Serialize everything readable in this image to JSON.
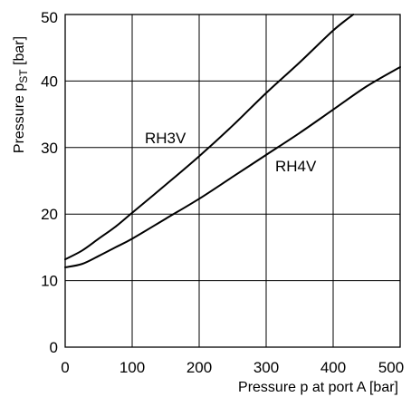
{
  "chart_data": {
    "type": "line",
    "xlabel": "Pressure p at port A [bar]",
    "ylabel": {
      "prefix": "Pressure p",
      "subscript": "ST",
      "suffix": " [bar]"
    },
    "xlim": [
      0,
      500
    ],
    "ylim": [
      0,
      50
    ],
    "x_ticks": [
      0,
      100,
      200,
      300,
      400,
      500
    ],
    "y_ticks": [
      0,
      10,
      20,
      30,
      40,
      50
    ],
    "grid": true,
    "series": [
      {
        "name": "RH3V",
        "x": [
          0,
          25,
          50,
          75,
          100,
          150,
          200,
          250,
          300,
          350,
          400,
          430
        ],
        "y": [
          13.2,
          14.5,
          16.3,
          18.1,
          20.2,
          24.4,
          28.7,
          33.3,
          38.2,
          42.8,
          47.6,
          50.0
        ]
      },
      {
        "name": "RH4V",
        "x": [
          0,
          25,
          50,
          75,
          100,
          150,
          200,
          250,
          300,
          350,
          400,
          450,
          500
        ],
        "y": [
          12.0,
          12.5,
          13.7,
          15.0,
          16.3,
          19.3,
          22.3,
          25.6,
          28.9,
          32.2,
          35.7,
          39.2,
          42.1
        ]
      }
    ]
  }
}
